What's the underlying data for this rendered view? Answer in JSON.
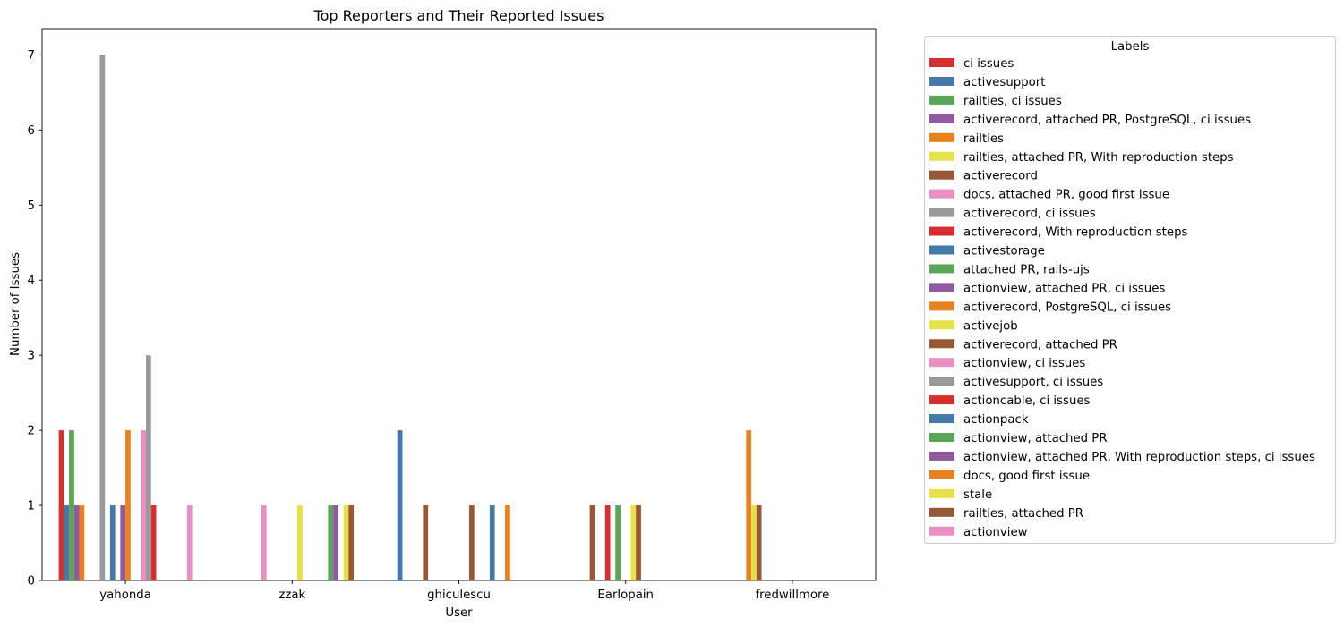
{
  "chart_data": {
    "type": "bar",
    "title": "Top Reporters and Their Reported Issues",
    "xlabel": "User",
    "ylabel": "Number of Issues",
    "ylim": [
      0,
      7.35
    ],
    "yticks": [
      0,
      1,
      2,
      3,
      4,
      5,
      6,
      7
    ],
    "grid": false,
    "legend": {
      "title": "Labels",
      "placement": "outside-right"
    },
    "categories": [
      "yahonda",
      "zzak",
      "ghiculescu",
      "Earlopain",
      "fredwillmore"
    ],
    "series": [
      {
        "name": "ci issues",
        "color": "#d62f2f",
        "values": [
          2,
          0,
          0,
          0,
          0
        ]
      },
      {
        "name": "activesupport",
        "color": "#4479a8",
        "values": [
          1,
          0,
          2,
          0,
          0
        ]
      },
      {
        "name": "railties, ci issues",
        "color": "#5aa656",
        "values": [
          2,
          0,
          0,
          0,
          0
        ]
      },
      {
        "name": "activerecord, attached PR, PostgreSQL, ci issues",
        "color": "#8f5a9e",
        "values": [
          1,
          0,
          0,
          0,
          0
        ]
      },
      {
        "name": "railties",
        "color": "#e8821e",
        "values": [
          1,
          0,
          0,
          0,
          2
        ]
      },
      {
        "name": "railties, attached PR, With reproduction steps",
        "color": "#e8e24a",
        "values": [
          0,
          0,
          0,
          0,
          1
        ]
      },
      {
        "name": "activerecord",
        "color": "#985835",
        "values": [
          0,
          0,
          1,
          1,
          1
        ]
      },
      {
        "name": "docs, attached PR, good first issue",
        "color": "#e890c1",
        "values": [
          0,
          1,
          0,
          0,
          0
        ]
      },
      {
        "name": "activerecord, ci issues",
        "color": "#999999",
        "values": [
          7,
          0,
          0,
          0,
          0
        ]
      },
      {
        "name": "activerecord, With reproduction steps",
        "color": "#d62f2f",
        "values": [
          0,
          0,
          0,
          1,
          0
        ]
      },
      {
        "name": "activestorage",
        "color": "#4479a8",
        "values": [
          1,
          0,
          0,
          0,
          0
        ]
      },
      {
        "name": "attached PR, rails-ujs",
        "color": "#5aa656",
        "values": [
          0,
          0,
          0,
          1,
          0
        ]
      },
      {
        "name": "actionview, attached PR, ci issues",
        "color": "#8f5a9e",
        "values": [
          1,
          0,
          0,
          0,
          0
        ]
      },
      {
        "name": "activerecord, PostgreSQL, ci issues",
        "color": "#e8821e",
        "values": [
          2,
          0,
          0,
          0,
          0
        ]
      },
      {
        "name": "activejob",
        "color": "#e8e24a",
        "values": [
          0,
          1,
          0,
          1,
          0
        ]
      },
      {
        "name": "activerecord, attached PR",
        "color": "#985835",
        "values": [
          0,
          0,
          1,
          1,
          0
        ]
      },
      {
        "name": "actionview, ci issues",
        "color": "#e890c1",
        "values": [
          2,
          0,
          0,
          0,
          0
        ]
      },
      {
        "name": "activesupport, ci issues",
        "color": "#999999",
        "values": [
          3,
          0,
          0,
          0,
          0
        ]
      },
      {
        "name": "actioncable, ci issues",
        "color": "#d62f2f",
        "values": [
          1,
          0,
          0,
          0,
          0
        ]
      },
      {
        "name": "actionpack",
        "color": "#4479a8",
        "values": [
          0,
          0,
          1,
          0,
          0
        ]
      },
      {
        "name": "actionview, attached PR",
        "color": "#5aa656",
        "values": [
          0,
          1,
          0,
          0,
          0
        ]
      },
      {
        "name": "actionview, attached PR, With reproduction steps, ci issues",
        "color": "#8f5a9e",
        "values": [
          0,
          1,
          0,
          0,
          0
        ]
      },
      {
        "name": "docs, good first issue",
        "color": "#e8821e",
        "values": [
          0,
          0,
          1,
          0,
          0
        ]
      },
      {
        "name": "stale",
        "color": "#e8e24a",
        "values": [
          0,
          1,
          0,
          0,
          0
        ]
      },
      {
        "name": "railties, attached PR",
        "color": "#985835",
        "values": [
          0,
          1,
          0,
          0,
          0
        ]
      },
      {
        "name": "actionview",
        "color": "#e890c1",
        "values": [
          1,
          0,
          0,
          0,
          0
        ]
      }
    ]
  }
}
